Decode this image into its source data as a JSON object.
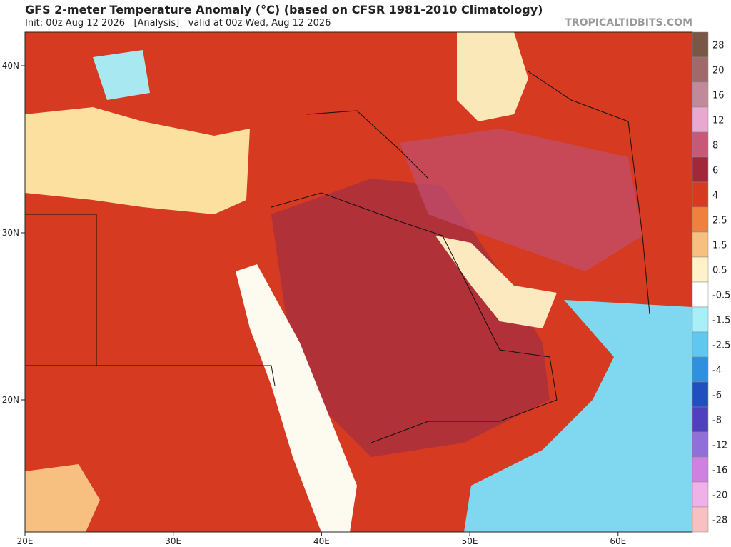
{
  "header": {
    "title": "GFS 2-meter Temperature Anomaly (°C) (based on CFSR 1981-2010 Climatology)",
    "subtitle": "Init: 00z Aug 12 2026   [Analysis]   valid at 00z Wed, Aug 12 2026",
    "credit": "TROPICALTIDBITS.COM"
  },
  "map": {
    "lat_labels": [
      "40N",
      "30N",
      "20N"
    ],
    "lon_labels": [
      "20E",
      "30E",
      "40E",
      "50E",
      "60E"
    ]
  },
  "colorbar": {
    "labels": [
      "28",
      "20",
      "16",
      "12",
      "8",
      "6",
      "4",
      "2.5",
      "1.5",
      "0.5",
      "-0.5",
      "-1.5",
      "-2.5",
      "-4",
      "-6",
      "-8",
      "-12",
      "-16",
      "-20",
      "-28"
    ],
    "colors": [
      "#7a5646",
      "#a06a6a",
      "#c08a9a",
      "#e8a8d0",
      "#c85878",
      "#a02838",
      "#d83a20",
      "#f08040",
      "#f8c080",
      "#fff2c8",
      "#ffffff",
      "#a8f0f8",
      "#60c8f0",
      "#3090e0",
      "#2050c0",
      "#5040c0",
      "#9070d8",
      "#d080e0",
      "#f0b0e8",
      "#f8c0c0"
    ]
  }
}
